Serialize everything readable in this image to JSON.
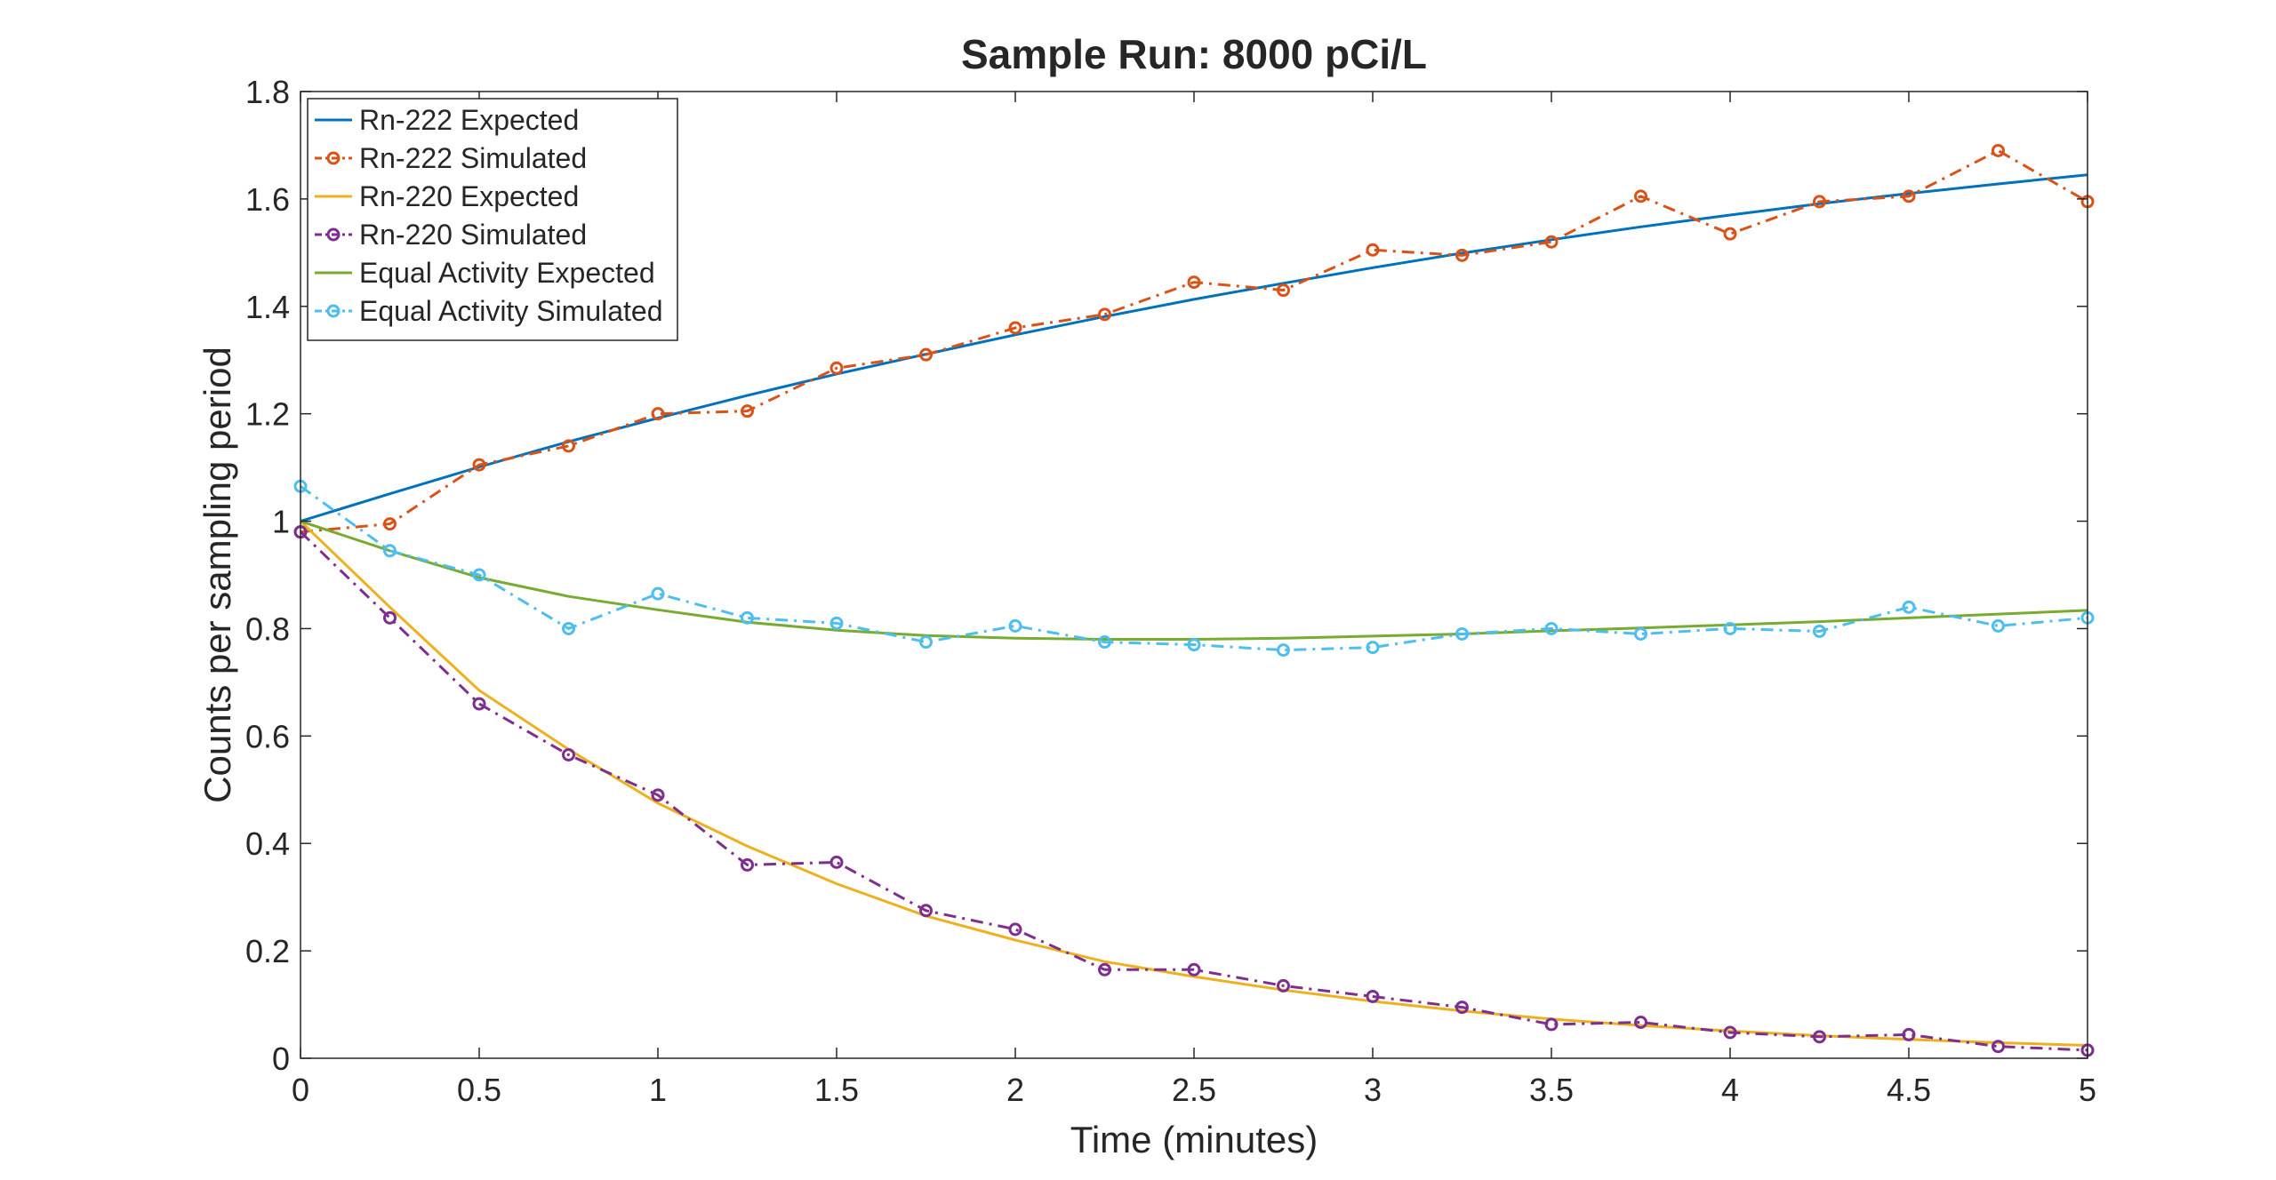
{
  "chart_data": {
    "type": "line",
    "title": "Sample Run: 8000 pCi/L",
    "xlabel": "Time (minutes)",
    "ylabel": "Counts per sampling period",
    "xlim": [
      0,
      5
    ],
    "ylim": [
      0,
      1.8
    ],
    "xticks": [
      0,
      0.5,
      1,
      1.5,
      2,
      2.5,
      3,
      3.5,
      4,
      4.5,
      5
    ],
    "xtick_labels": [
      "0",
      "0.5",
      "1",
      "1.5",
      "2",
      "2.5",
      "3",
      "3.5",
      "4",
      "4.5",
      "5"
    ],
    "yticks": [
      0,
      0.2,
      0.4,
      0.6,
      0.8,
      1,
      1.2,
      1.4,
      1.6,
      1.8
    ],
    "ytick_labels": [
      "0",
      "0.2",
      "0.4",
      "0.6",
      "0.8",
      "1",
      "1.2",
      "1.4",
      "1.6",
      "1.8"
    ],
    "grid": false,
    "legend_position": "top-left",
    "x": [
      0,
      0.25,
      0.5,
      0.75,
      1,
      1.25,
      1.5,
      1.75,
      2,
      2.25,
      2.5,
      2.75,
      3,
      3.25,
      3.5,
      3.75,
      4,
      4.25,
      4.5,
      4.75,
      5
    ],
    "series": [
      {
        "name": "Rn-222 Expected",
        "color": "#0072BD",
        "style": "solid",
        "marker": false,
        "values": [
          1.0,
          1.051,
          1.101,
          1.148,
          1.192,
          1.234,
          1.274,
          1.311,
          1.347,
          1.381,
          1.413,
          1.443,
          1.472,
          1.499,
          1.524,
          1.548,
          1.57,
          1.591,
          1.61,
          1.628,
          1.645
        ]
      },
      {
        "name": "Rn-222 Simulated",
        "color": "#D95319",
        "style": "dashdot",
        "marker": true,
        "values": [
          0.98,
          0.995,
          1.105,
          1.14,
          1.2,
          1.205,
          1.285,
          1.31,
          1.36,
          1.385,
          1.445,
          1.43,
          1.505,
          1.495,
          1.52,
          1.605,
          1.535,
          1.595,
          1.605,
          1.69,
          1.595
        ]
      },
      {
        "name": "Rn-220 Expected",
        "color": "#EDB120",
        "style": "solid",
        "marker": false,
        "values": [
          1.0,
          0.84,
          0.685,
          0.575,
          0.475,
          0.395,
          0.325,
          0.265,
          0.22,
          0.18,
          0.152,
          0.127,
          0.106,
          0.088,
          0.073,
          0.061,
          0.051,
          0.042,
          0.035,
          0.029,
          0.024
        ]
      },
      {
        "name": "Rn-220 Simulated",
        "color": "#7E2F8E",
        "style": "dashdot",
        "marker": true,
        "values": [
          0.98,
          0.82,
          0.66,
          0.565,
          0.49,
          0.36,
          0.365,
          0.275,
          0.24,
          0.165,
          0.165,
          0.135,
          0.115,
          0.095,
          0.063,
          0.067,
          0.048,
          0.04,
          0.044,
          0.022,
          0.015
        ]
      },
      {
        "name": "Equal Activity Expected",
        "color": "#77AC30",
        "style": "solid",
        "marker": false,
        "values": [
          1.0,
          0.945,
          0.895,
          0.86,
          0.835,
          0.812,
          0.797,
          0.787,
          0.782,
          0.78,
          0.78,
          0.782,
          0.786,
          0.79,
          0.796,
          0.801,
          0.807,
          0.813,
          0.82,
          0.827,
          0.834
        ]
      },
      {
        "name": "Equal Activity Simulated",
        "color": "#4DBEEE",
        "style": "dashdot",
        "marker": true,
        "values": [
          1.065,
          0.945,
          0.9,
          0.8,
          0.865,
          0.82,
          0.81,
          0.775,
          0.805,
          0.775,
          0.77,
          0.76,
          0.765,
          0.79,
          0.8,
          0.79,
          0.8,
          0.795,
          0.84,
          0.805,
          0.82
        ]
      }
    ]
  }
}
